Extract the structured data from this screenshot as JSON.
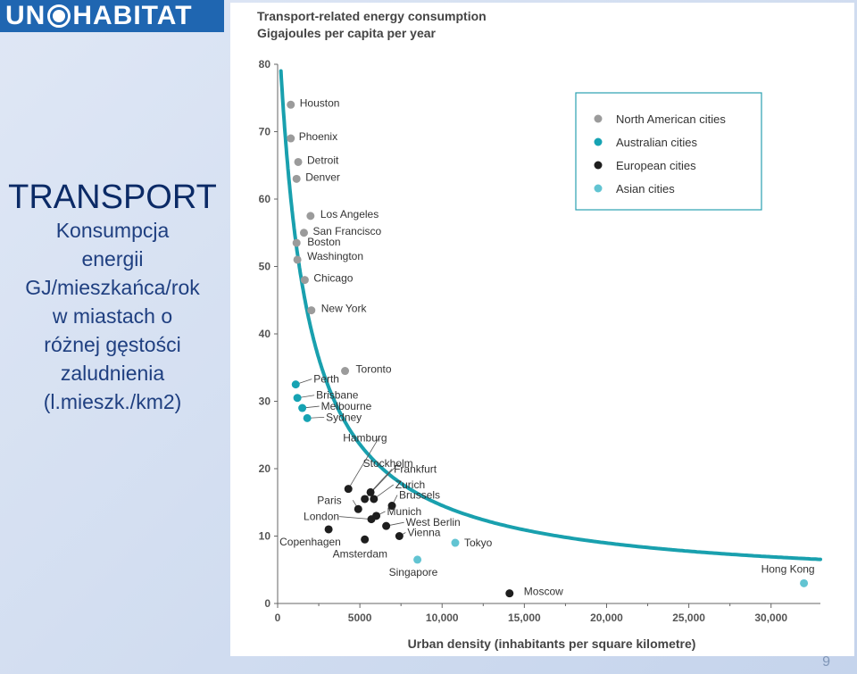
{
  "logo": {
    "pre": "UN",
    "post": "HABITAT"
  },
  "sidebar": {
    "title": "TRANSPORT",
    "lines": [
      "Konsumpcja",
      "energii",
      "GJ/mieszkańca/rok",
      "w miastach o",
      "różnej gęstości",
      "zaludnienia",
      "(l.mieszk./km2)"
    ]
  },
  "page_number": "9",
  "colors": {
    "north_american": "#9b9b9b",
    "australian": "#16a3b3",
    "european": "#1e1e1e",
    "asian": "#62c4d2",
    "curve": "#19a0ae",
    "legend_border": "#2aa0b0"
  },
  "chart_data": {
    "type": "scatter",
    "title": "Transport-related energy consumption",
    "subtitle": "Gigajoules per capita per year",
    "xlabel": "Urban density (inhabitants per square kilometre)",
    "ylabel": "",
    "xlim": [
      0,
      33000
    ],
    "ylim": [
      0,
      80
    ],
    "xticks": [
      "0",
      "5000",
      "10,000",
      "15,000",
      "20,000",
      "25,000",
      "30,000"
    ],
    "yticks": [
      "0",
      "10",
      "20",
      "30",
      "40",
      "50",
      "60",
      "70",
      "80"
    ],
    "legend": {
      "placement": "top-right",
      "entries": [
        "North American cities",
        "Australian cities",
        "European cities",
        "Asian cities"
      ]
    },
    "grid": false,
    "curve": "y = 140000 / (x + 1630) + 2.5",
    "series": [
      {
        "name": "North American cities",
        "points": [
          {
            "label": "Houston",
            "x": 800,
            "y": 74
          },
          {
            "label": "Phoenix",
            "x": 800,
            "y": 69
          },
          {
            "label": "Detroit",
            "x": 1250,
            "y": 65.5
          },
          {
            "label": "Denver",
            "x": 1150,
            "y": 63
          },
          {
            "label": "Los Angeles",
            "x": 2000,
            "y": 57.5
          },
          {
            "label": "San Francisco",
            "x": 1600,
            "y": 55
          },
          {
            "label": "Boston",
            "x": 1150,
            "y": 53.5
          },
          {
            "label": "Washington",
            "x": 1200,
            "y": 51
          },
          {
            "label": "Chicago",
            "x": 1650,
            "y": 48
          },
          {
            "label": "New York",
            "x": 2050,
            "y": 43.5
          },
          {
            "label": "Toronto",
            "x": 4100,
            "y": 34.5
          }
        ]
      },
      {
        "name": "Australian cities",
        "points": [
          {
            "label": "Perth",
            "x": 1100,
            "y": 32.5
          },
          {
            "label": "Brisbane",
            "x": 1200,
            "y": 30.5
          },
          {
            "label": "Melbourne",
            "x": 1500,
            "y": 29
          },
          {
            "label": "Sydney",
            "x": 1800,
            "y": 27.5
          }
        ]
      },
      {
        "name": "European cities",
        "points": [
          {
            "label": "Hamburg",
            "x": 4300,
            "y": 17
          },
          {
            "label": "Stockholm",
            "x": 5300,
            "y": 15.5
          },
          {
            "label": "Frankfurt",
            "x": 5650,
            "y": 16.5
          },
          {
            "label": "Zurich",
            "x": 5850,
            "y": 15.5
          },
          {
            "label": "Brussels",
            "x": 6950,
            "y": 14.5
          },
          {
            "label": "Paris",
            "x": 4900,
            "y": 14
          },
          {
            "label": "Munich",
            "x": 6000,
            "y": 13
          },
          {
            "label": "London",
            "x": 5700,
            "y": 12.5
          },
          {
            "label": "West Berlin",
            "x": 6600,
            "y": 11.5
          },
          {
            "label": "Copenhagen",
            "x": 3100,
            "y": 11
          },
          {
            "label": "Vienna",
            "x": 7400,
            "y": 10
          },
          {
            "label": "Amsterdam",
            "x": 5300,
            "y": 9.5
          },
          {
            "label": "Moscow",
            "x": 14100,
            "y": 1.5
          }
        ]
      },
      {
        "name": "Asian cities",
        "points": [
          {
            "label": "Tokyo",
            "x": 10800,
            "y": 9
          },
          {
            "label": "Singapore",
            "x": 8500,
            "y": 6.5
          },
          {
            "label": "Hong Kong",
            "x": 32000,
            "y": 3
          }
        ]
      }
    ]
  }
}
